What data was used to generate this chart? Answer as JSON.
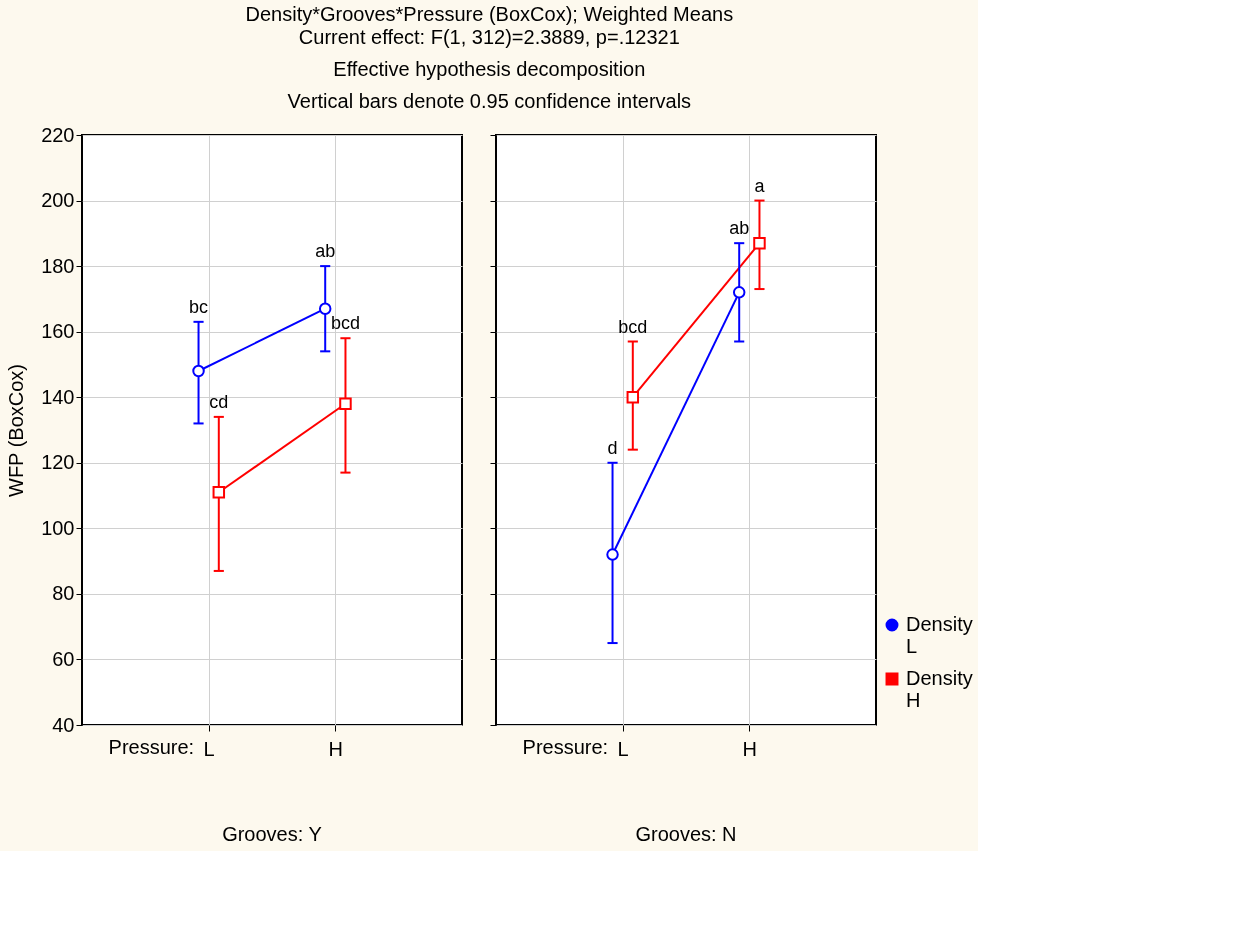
{
  "chart_data": [
    {
      "type": "line",
      "title": "Density*Grooves*Pressure (BoxCox); Weighted Means",
      "subtitle": "Current effect: F(1, 312)=2.3889, p=.12321\nEffective hypothesis decomposition\nVertical bars denote 0.95 confidence intervals",
      "ylabel": "WFP (BoxCox)",
      "xlabel": "Pressure:",
      "categories": [
        "L",
        "H"
      ],
      "ylim": [
        40,
        220
      ],
      "yticks": [
        40,
        60,
        80,
        100,
        120,
        140,
        160,
        180,
        200,
        220
      ],
      "grid": true,
      "legend": "bottom right",
      "series": [
        {
          "name": "Density L",
          "color": "#0000ff",
          "marker": "circle",
          "values": [
            148,
            167
          ],
          "errors": [
            [
              132,
              163
            ],
            [
              154,
              180
            ]
          ]
        },
        {
          "name": "Density H",
          "color": "#ff0000",
          "marker": "square",
          "values": [
            111,
            138
          ],
          "errors": [
            [
              87,
              134
            ],
            [
              117,
              158
            ]
          ]
        }
      ],
      "annotations": [
        "Grooves: Y",
        {
          "text": "bc",
          "y": 163
        },
        {
          "text": "ab",
          "y": 180
        },
        {
          "text": "cd",
          "y": 134
        },
        {
          "text": "bcd",
          "x": "H",
          "y": 158
        }
      ]
    },
    {
      "type": "line",
      "xlabel": "Pressure:",
      "categories": [
        "L",
        "H"
      ],
      "ylim": [
        40,
        220
      ],
      "yticks": [
        40,
        60,
        80,
        100,
        120,
        140,
        160,
        180,
        200,
        220
      ],
      "grid": true,
      "legend": "bottom right",
      "tick_labels": "x",
      "series": [
        {
          "name": "Density L",
          "color": "#0000ff",
          "marker": "circle",
          "values": [
            92,
            172
          ],
          "errors": [
            [
              65,
              120
            ],
            [
              157,
              187
            ]
          ]
        },
        {
          "name": "Density H",
          "color": "#ff0000",
          "marker": "square",
          "values": [
            140,
            187
          ],
          "errors": [
            [
              124,
              157
            ],
            [
              173,
              200
            ]
          ]
        }
      ],
      "annotations": [
        "Grooves: N",
        {
          "text": "d",
          "y": 120
        },
        {
          "text": "ab",
          "y": 187
        },
        {
          "text": "bcd",
          "y": 157
        },
        {
          "text": "a",
          "y": 200
        }
      ]
    }
  ]
}
